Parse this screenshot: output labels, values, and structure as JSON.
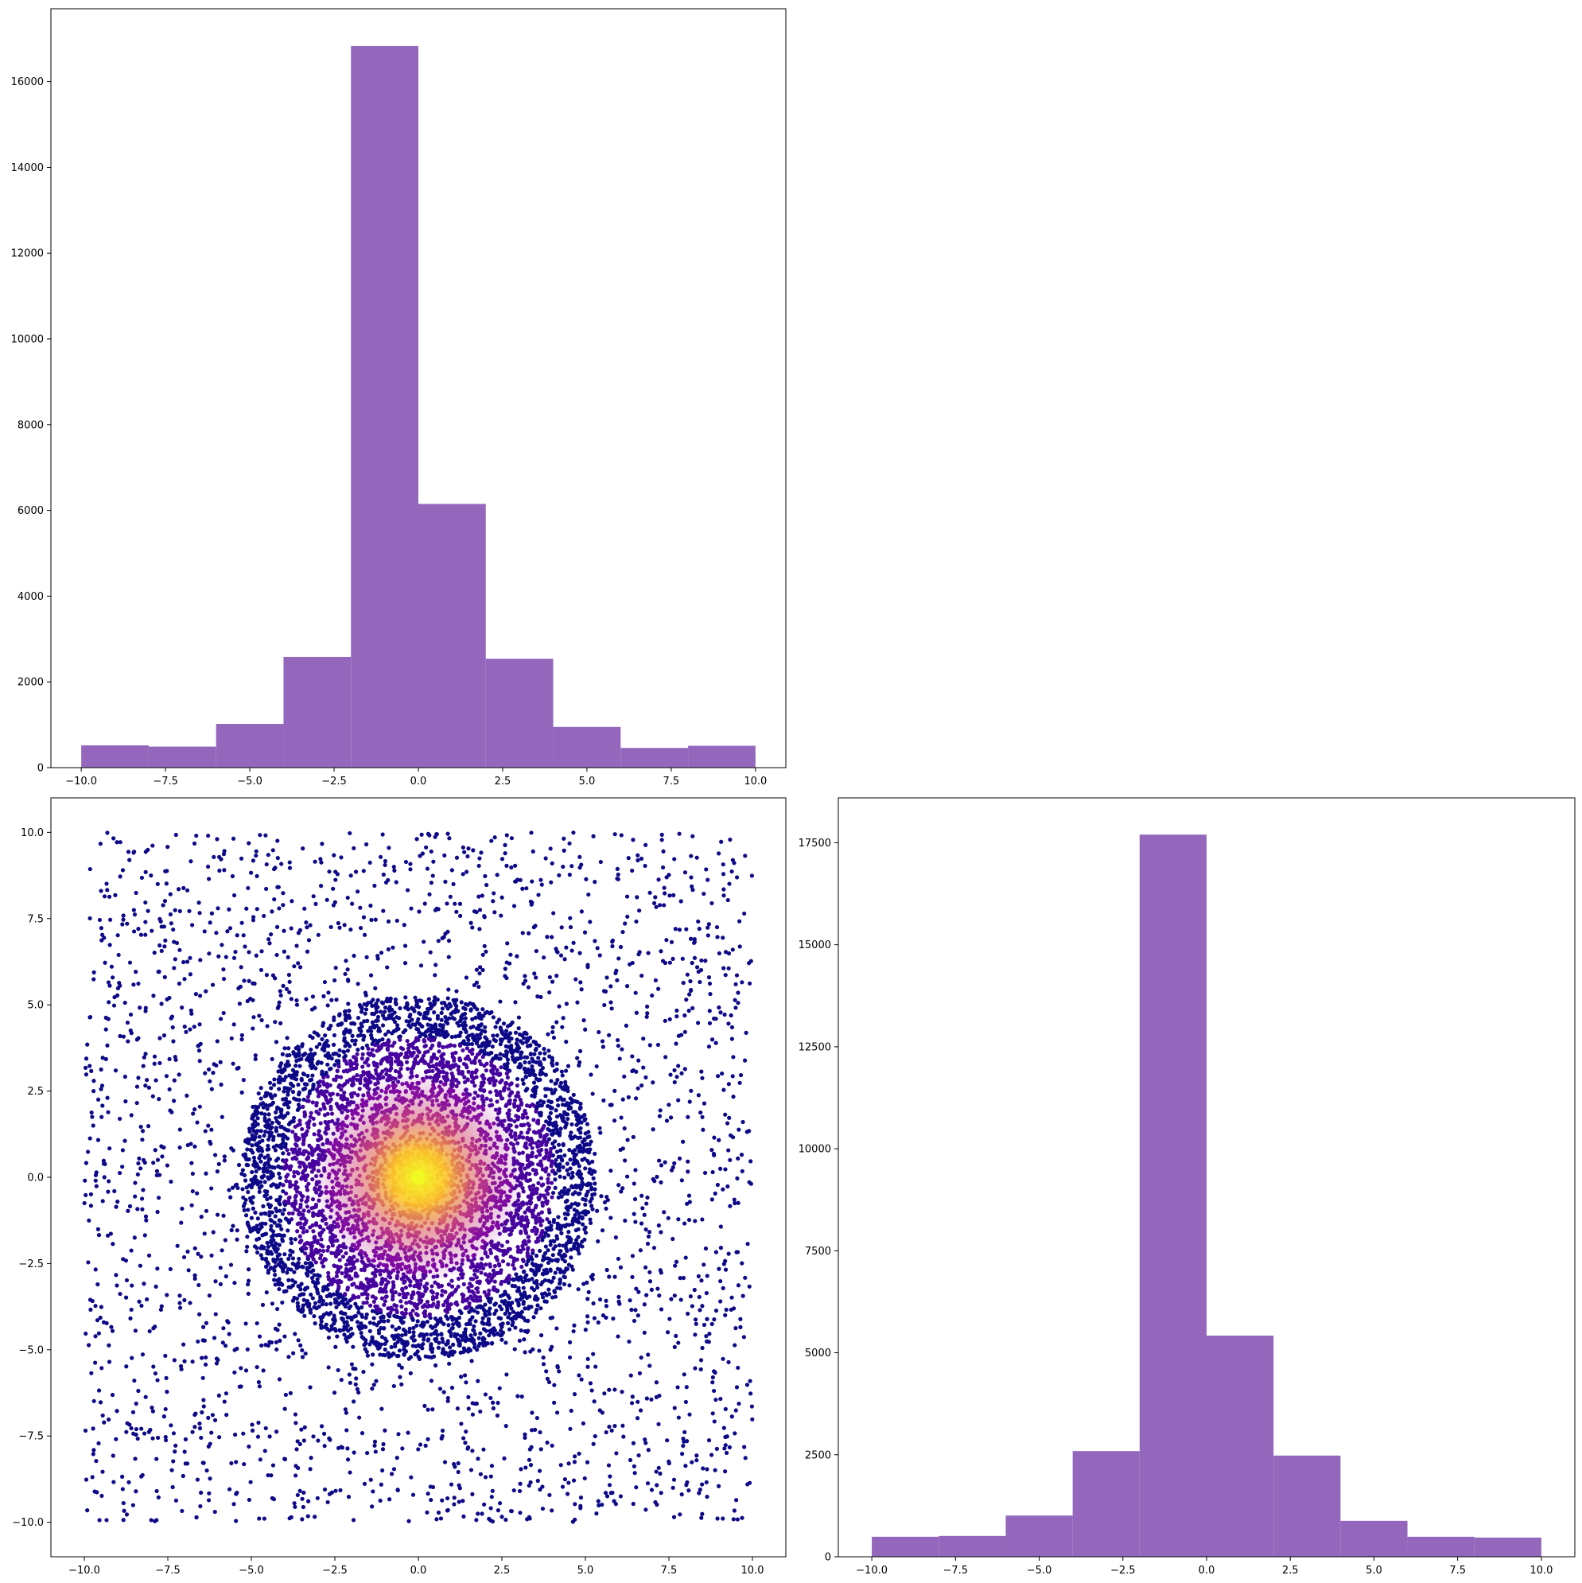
{
  "colors": {
    "hist_fill": "#9467bd",
    "scatter_palette": [
      "#0d0887",
      "#46039f",
      "#7201a8",
      "#9c179e",
      "#bd3786",
      "#d8576b",
      "#ed7953",
      "#fb9f3a",
      "#fdca26",
      "#f0f921"
    ]
  },
  "chart_data": [
    {
      "type": "bar",
      "name": "top-histogram",
      "bin_edges": [
        -10,
        -8,
        -6,
        -4,
        -2,
        0,
        2,
        4,
        6,
        8,
        10
      ],
      "values": [
        520,
        490,
        1020,
        2580,
        16830,
        6150,
        2540,
        950,
        460,
        510
      ],
      "xlim": [
        -10.9,
        10.9
      ],
      "ylim": [
        0,
        17700
      ],
      "xticks": [
        -10.0,
        -7.5,
        -5.0,
        -2.5,
        0.0,
        2.5,
        5.0,
        7.5,
        10.0
      ],
      "xtick_labels": [
        "−10.0",
        "−7.5",
        "−5.0",
        "−2.5",
        "0.0",
        "2.5",
        "5.0",
        "7.5",
        "10.0"
      ],
      "yticks": [
        0,
        2000,
        4000,
        6000,
        8000,
        10000,
        12000,
        14000,
        16000
      ],
      "ytick_labels": [
        "0",
        "2000",
        "4000",
        "6000",
        "8000",
        "10000",
        "12000",
        "14000",
        "16000"
      ],
      "grid": false
    },
    {
      "type": "scatter",
      "name": "center-scatter",
      "description_of_points": "uniform background over [-10,10]^2 plus dense disc of radius ~5.3 centered at origin; color by density (plasma colormap), brightest at center",
      "background_points": 2600,
      "disc_points": 5200,
      "disc_radius": 5.3,
      "center": [
        0,
        0
      ],
      "xlim": [
        -11,
        11
      ],
      "ylim": [
        -11,
        11
      ],
      "xticks": [
        -10.0,
        -7.5,
        -5.0,
        -2.5,
        0.0,
        2.5,
        5.0,
        7.5,
        10.0
      ],
      "xtick_labels": [
        "−10.0",
        "−7.5",
        "−5.0",
        "−2.5",
        "0.0",
        "2.5",
        "5.0",
        "7.5",
        "10.0"
      ],
      "yticks": [
        -10.0,
        -7.5,
        -5.0,
        -2.5,
        0.0,
        2.5,
        5.0,
        7.5,
        10.0
      ],
      "ytick_labels": [
        "−10.0",
        "−7.5",
        "−5.0",
        "−2.5",
        "0.0",
        "2.5",
        "5.0",
        "7.5",
        "10.0"
      ],
      "grid": false
    },
    {
      "type": "bar",
      "name": "right-histogram",
      "bin_edges": [
        -10,
        -8,
        -6,
        -4,
        -2,
        0,
        2,
        4,
        6,
        8,
        10
      ],
      "values": [
        490,
        510,
        1010,
        2590,
        17700,
        5420,
        2480,
        880,
        490,
        470
      ],
      "xlim": [
        -11,
        11
      ],
      "ylim": [
        0,
        18600
      ],
      "xticks": [
        -10.0,
        -7.5,
        -5.0,
        -2.5,
        0.0,
        2.5,
        5.0,
        7.5,
        10.0
      ],
      "xtick_labels": [
        "−10.0",
        "−7.5",
        "−5.0",
        "−2.5",
        "0.0",
        "2.5",
        "5.0",
        "7.5",
        "10.0"
      ],
      "yticks": [
        0,
        2500,
        5000,
        7500,
        10000,
        12500,
        15000,
        17500
      ],
      "ytick_labels": [
        "0",
        "2500",
        "5000",
        "7500",
        "10000",
        "12500",
        "15000",
        "17500"
      ],
      "grid": false
    }
  ]
}
